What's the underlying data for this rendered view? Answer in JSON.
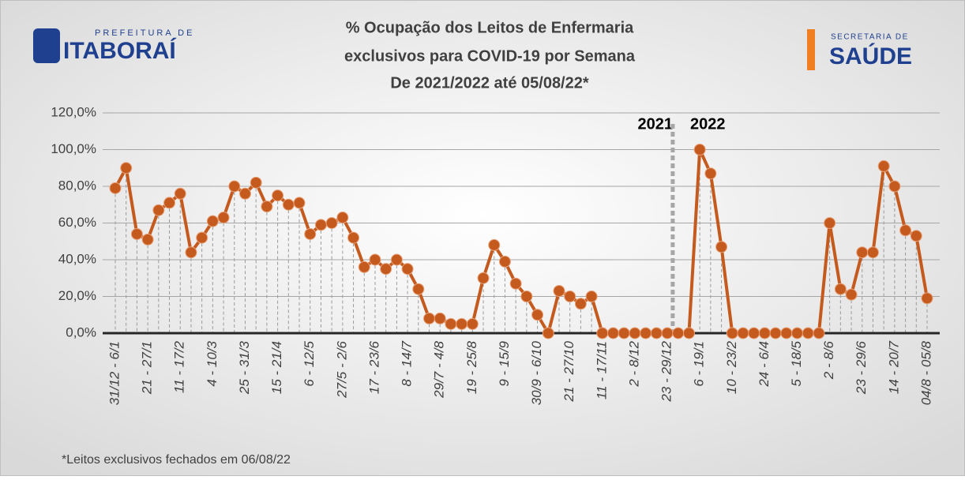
{
  "header": {
    "left_logo": {
      "line1": "PREFEITURA DE",
      "line2": "ITABORAÍ"
    },
    "right_logo": {
      "line1": "SECRETARIA DE",
      "line2": "SAÚDE"
    }
  },
  "chart_data": {
    "type": "line",
    "title": [
      "% Ocupação dos Leitos de Enfermaria",
      "exclusivos para COVID-19 por Semana",
      "De 2021/2022 até 05/08/22*"
    ],
    "annotations": [
      "2021",
      "2022"
    ],
    "footnote": "*Leitos exclusivos fechados em 06/08/22",
    "categories": [
      "31/12 - 6/1",
      null,
      null,
      "21 - 27/1",
      null,
      null,
      "11 - 17/2",
      null,
      null,
      "4 - 10/3",
      null,
      null,
      "25 - 31/3",
      null,
      null,
      "15 - 21/4",
      null,
      null,
      "6 - 12/5",
      null,
      null,
      "27/5 - 2/6",
      null,
      null,
      "17 - 23/6",
      null,
      null,
      "8 - 14/7",
      null,
      null,
      "29/7 - 4/8",
      null,
      null,
      "19 - 25/8",
      null,
      null,
      "9 - 15/9",
      null,
      null,
      "30/9 - 6/10",
      null,
      null,
      "21 - 27/10",
      null,
      null,
      "11 - 17/11",
      null,
      null,
      "2 - 8/12",
      null,
      null,
      "23 - 29/12",
      null,
      null,
      "6 - 19/1",
      null,
      null,
      "10 - 23/2",
      null,
      null,
      "24 - 6/4",
      null,
      null,
      "5 - 18/5",
      null,
      null,
      "2 - 8/6",
      null,
      null,
      "23 - 29/6",
      null,
      null,
      "14 - 20/7",
      null,
      null,
      "04/8 - 05/8"
    ],
    "series": [
      {
        "name": "% Ocupação",
        "color": "#c55a1e",
        "values": [
          79,
          90,
          54,
          51,
          67,
          71,
          76,
          44,
          52,
          61,
          63,
          80,
          76,
          82,
          69,
          75,
          70,
          71,
          54,
          59,
          60,
          63,
          52,
          36,
          40,
          35,
          40,
          35,
          24,
          8,
          8,
          5,
          5,
          5,
          30,
          48,
          39,
          27,
          20,
          10,
          0,
          23,
          20,
          16,
          20,
          0,
          0,
          0,
          0,
          0,
          0,
          0,
          0,
          0,
          100,
          87,
          47,
          0,
          0,
          0,
          0,
          0,
          0,
          0,
          0,
          0,
          60,
          24,
          21,
          44,
          44,
          91,
          80,
          56,
          53,
          19
        ]
      }
    ],
    "ylim": [
      0,
      120
    ],
    "yticks": [
      {
        "value": 0,
        "label": "0,0%"
      },
      {
        "value": 20,
        "label": "20,0%"
      },
      {
        "value": 40,
        "label": "40,0%"
      },
      {
        "value": 60,
        "label": "60,0%"
      },
      {
        "value": 80,
        "label": "80,0%"
      },
      {
        "value": 100,
        "label": "100,0%"
      },
      {
        "value": 120,
        "label": "120,0%"
      }
    ],
    "grid": true
  }
}
